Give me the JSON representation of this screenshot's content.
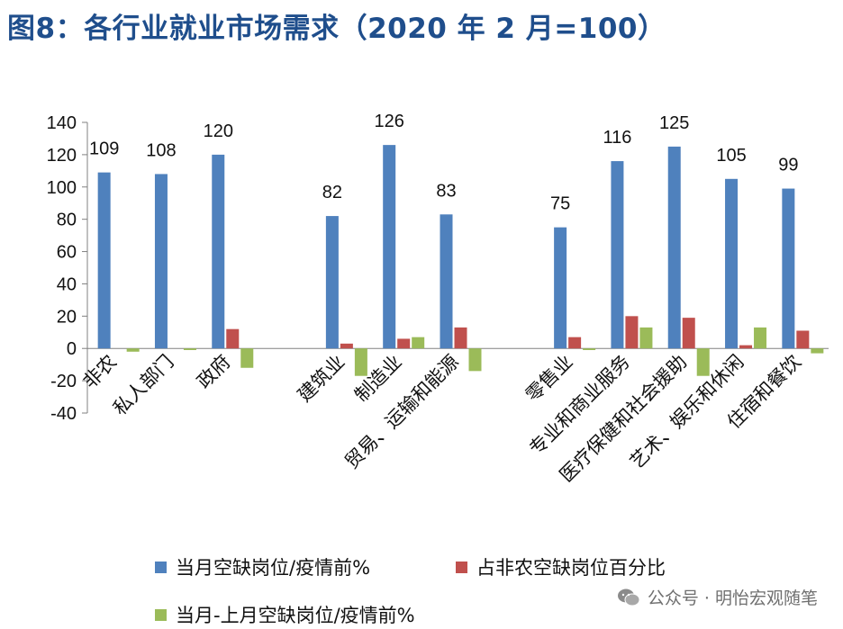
{
  "title": "图8：各行业就业市场需求（2020 年 2 月=100）",
  "watermark": "公众号 · 明怡宏观随笔",
  "colors": {
    "title": "#1f4e8c",
    "series": [
      "#4f81bd",
      "#c0504d",
      "#9bbb59"
    ]
  },
  "chart_data": {
    "type": "bar",
    "categories": [
      "非农",
      "私人部门",
      "政府",
      "",
      "建筑业",
      "制造业",
      "贸易、运输和能源",
      "",
      "零售业",
      "专业和商业服务",
      "医疗保健和社会援助",
      "艺术、娱乐和休闲",
      "住宿和餐饮"
    ],
    "series": [
      {
        "name": "当月空缺岗位/疫情前%",
        "values": [
          109,
          108,
          120,
          null,
          82,
          126,
          83,
          null,
          75,
          116,
          125,
          105,
          99
        ]
      },
      {
        "name": "占非农空缺岗位百分比",
        "values": [
          0,
          0,
          12,
          null,
          3,
          6,
          13,
          null,
          7,
          20,
          19,
          2,
          11
        ]
      },
      {
        "name": "当月-上月空缺岗位/疫情前%",
        "values": [
          -2,
          -1,
          -12,
          null,
          -17,
          7,
          -14,
          null,
          -1,
          13,
          -17,
          13,
          -3
        ]
      }
    ],
    "data_labels": [
      "109",
      "108",
      "120",
      "",
      "82",
      "126",
      "83",
      "",
      "75",
      "116",
      "125",
      "105",
      "99"
    ],
    "ylim": [
      -40,
      140
    ],
    "yticks": [
      140,
      120,
      100,
      80,
      60,
      40,
      20,
      0,
      -20,
      -40
    ],
    "legend_position": "bottom",
    "grid": false
  }
}
